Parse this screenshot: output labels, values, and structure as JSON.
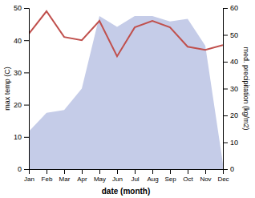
{
  "chart_data": {
    "type": "line",
    "categories": [
      "Jan",
      "Feb",
      "Mar",
      "Apr",
      "May",
      "Jun",
      "Jul",
      "Aug",
      "Sep",
      "Oct",
      "Nov",
      "Dec"
    ],
    "xlabel": "date (month)",
    "ylabel": "max temp (C)",
    "y2label": "med. precipitation (kg/m2)",
    "ylim": [
      0,
      50
    ],
    "yticks": [
      0,
      10,
      20,
      30,
      40,
      50
    ],
    "y2lim": [
      0,
      60
    ],
    "y2ticks": [
      0,
      10,
      20,
      30,
      40,
      50,
      60
    ],
    "grid": false,
    "series": [
      {
        "type": "area",
        "axis": "y2",
        "color": "#c5cce8",
        "values": [
          14,
          21,
          22,
          30,
          57,
          53,
          57,
          57,
          55,
          56,
          46,
          2
        ]
      },
      {
        "type": "line",
        "color": "#c0504d",
        "values": [
          42,
          49,
          41,
          40,
          46,
          35,
          44,
          46,
          44,
          38,
          37,
          38.5
        ]
      }
    ]
  }
}
